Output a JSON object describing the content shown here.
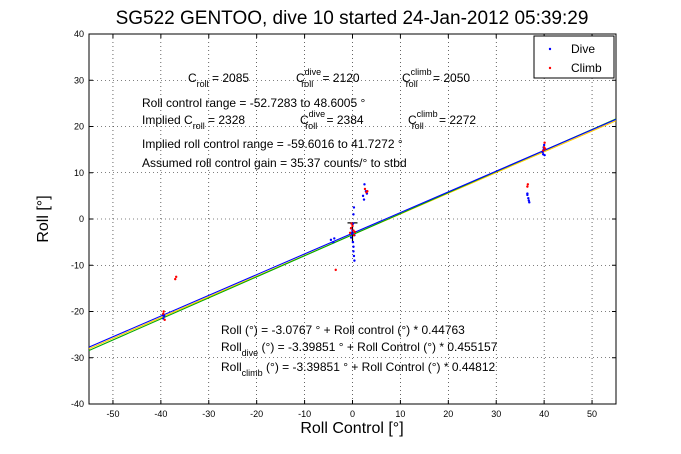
{
  "chart_data": {
    "type": "scatter",
    "title": "SG522 GENTOO, dive 10 started 24-Jan-2012 05:39:29",
    "xlabel": "Roll Control [°]",
    "ylabel": "Roll [°]",
    "xlim": [
      -55,
      55
    ],
    "ylim": [
      -40,
      40
    ],
    "xticks": [
      -50,
      -40,
      -30,
      -20,
      -10,
      0,
      10,
      20,
      30,
      40,
      50
    ],
    "yticks": [
      -40,
      -30,
      -20,
      -10,
      0,
      10,
      20,
      30,
      40
    ],
    "grid": true,
    "legend": {
      "position": "top-right",
      "entries": [
        "Dive",
        "Climb"
      ]
    },
    "colors": {
      "dive": "#0000ff",
      "climb": "#ff0000",
      "fit_all": "#0000ff",
      "fit_dive": "#00aa00",
      "fit_climb": "#ffcc00"
    },
    "series": [
      {
        "name": "Dive",
        "points": [
          [
            -39.5,
            -21.5
          ],
          [
            -39.3,
            -21.0
          ],
          [
            -39.6,
            -20.8
          ],
          [
            -4.5,
            -4.5
          ],
          [
            -4.0,
            -5.0
          ],
          [
            -3.8,
            -4.2
          ],
          [
            -0.3,
            -4.0
          ],
          [
            -0.2,
            -3.0
          ],
          [
            0.1,
            -5.0
          ],
          [
            0.2,
            -6.0
          ],
          [
            0.3,
            -8.0
          ],
          [
            0.4,
            -9.0
          ],
          [
            0.2,
            -7.0
          ],
          [
            0.1,
            -1.0
          ],
          [
            0.2,
            1.0
          ],
          [
            0.3,
            2.5
          ],
          [
            -0.3,
            -2.0
          ],
          [
            0.4,
            -3.5
          ],
          [
            0.0,
            -2.5
          ],
          [
            -0.1,
            -3.2
          ],
          [
            2.2,
            5.0
          ],
          [
            2.5,
            7.5
          ],
          [
            2.8,
            6.0
          ],
          [
            3.0,
            5.5
          ],
          [
            2.4,
            4.2
          ],
          [
            36.5,
            5.5
          ],
          [
            36.7,
            4.5
          ],
          [
            36.8,
            4.0
          ],
          [
            36.9,
            3.6
          ],
          [
            36.5,
            5.2
          ],
          [
            39.8,
            14.0
          ],
          [
            39.9,
            15.0
          ],
          [
            40.0,
            16.0
          ],
          [
            39.7,
            14.5
          ],
          [
            40.1,
            13.8
          ],
          [
            39.9,
            15.5
          ]
        ]
      },
      {
        "name": "Climb",
        "points": [
          [
            -39.5,
            -20.5
          ],
          [
            -39.2,
            -21.8
          ],
          [
            -39.4,
            -20.0
          ],
          [
            -37.0,
            -13.0
          ],
          [
            -36.8,
            -12.5
          ],
          [
            -3.5,
            -11.0
          ],
          [
            -0.5,
            -3.0
          ],
          [
            -0.3,
            -2.0
          ],
          [
            0.0,
            -1.5
          ],
          [
            0.2,
            -2.5
          ],
          [
            0.3,
            -3.5
          ],
          [
            0.5,
            -2.8
          ],
          [
            -0.2,
            -1.0
          ],
          [
            2.6,
            6.5
          ],
          [
            2.9,
            5.8
          ],
          [
            3.1,
            6.0
          ],
          [
            36.5,
            7.0
          ],
          [
            36.6,
            7.5
          ],
          [
            40.0,
            15.5
          ],
          [
            40.1,
            16.5
          ],
          [
            39.8,
            14.8
          ],
          [
            40.2,
            15.2
          ]
        ]
      }
    ],
    "fit_lines": [
      {
        "label": "all",
        "intercept": -3.0767,
        "slope": 0.44763
      },
      {
        "label": "dive",
        "intercept": -3.39851,
        "slope": 0.455157
      },
      {
        "label": "climb",
        "intercept": -3.39851,
        "slope": 0.44812
      }
    ],
    "zero_marker": {
      "x": 0,
      "y": -3.0
    },
    "annotations": {
      "c_roll": {
        "base": "C",
        "sub": "roll",
        "value": " = 2085"
      },
      "c_roll_dive": {
        "base": "C",
        "sup": "dive",
        "sub": "roll",
        "value": " = 2120"
      },
      "c_roll_climb": {
        "base": "C",
        "sup": "climb",
        "sub": "roll",
        "value": " = 2050"
      },
      "range": "Roll control range = -52.7283 to 48.6005 °",
      "implied_prefix": "Implied C",
      "implied_sub": "roll",
      "implied_value": " = 2328",
      "implied_dive": {
        "base": "C",
        "sup": "dive",
        "sub": "roll",
        "value": " = 2384"
      },
      "implied_climb": {
        "base": "C",
        "sup": "climb",
        "sub": "roll",
        "value": " = 2272"
      },
      "implied_range": "Implied roll control range = -59.6016 to 41.7272 °",
      "gain": "Assumed roll control gain = 35.37 counts/° to stbd",
      "eq1": "Roll (°) = -3.0767 ° + Roll control (°) * 0.44763",
      "eq2_base": "Roll",
      "eq2_sub": "dive",
      "eq2_rest": " (°) = -3.39851 ° + Roll Control (°) * 0.455157",
      "eq3_base": "Roll",
      "eq3_sub": "climb",
      "eq3_rest": " (°) = -3.39851 ° + Roll Control (°) * 0.44812"
    }
  }
}
